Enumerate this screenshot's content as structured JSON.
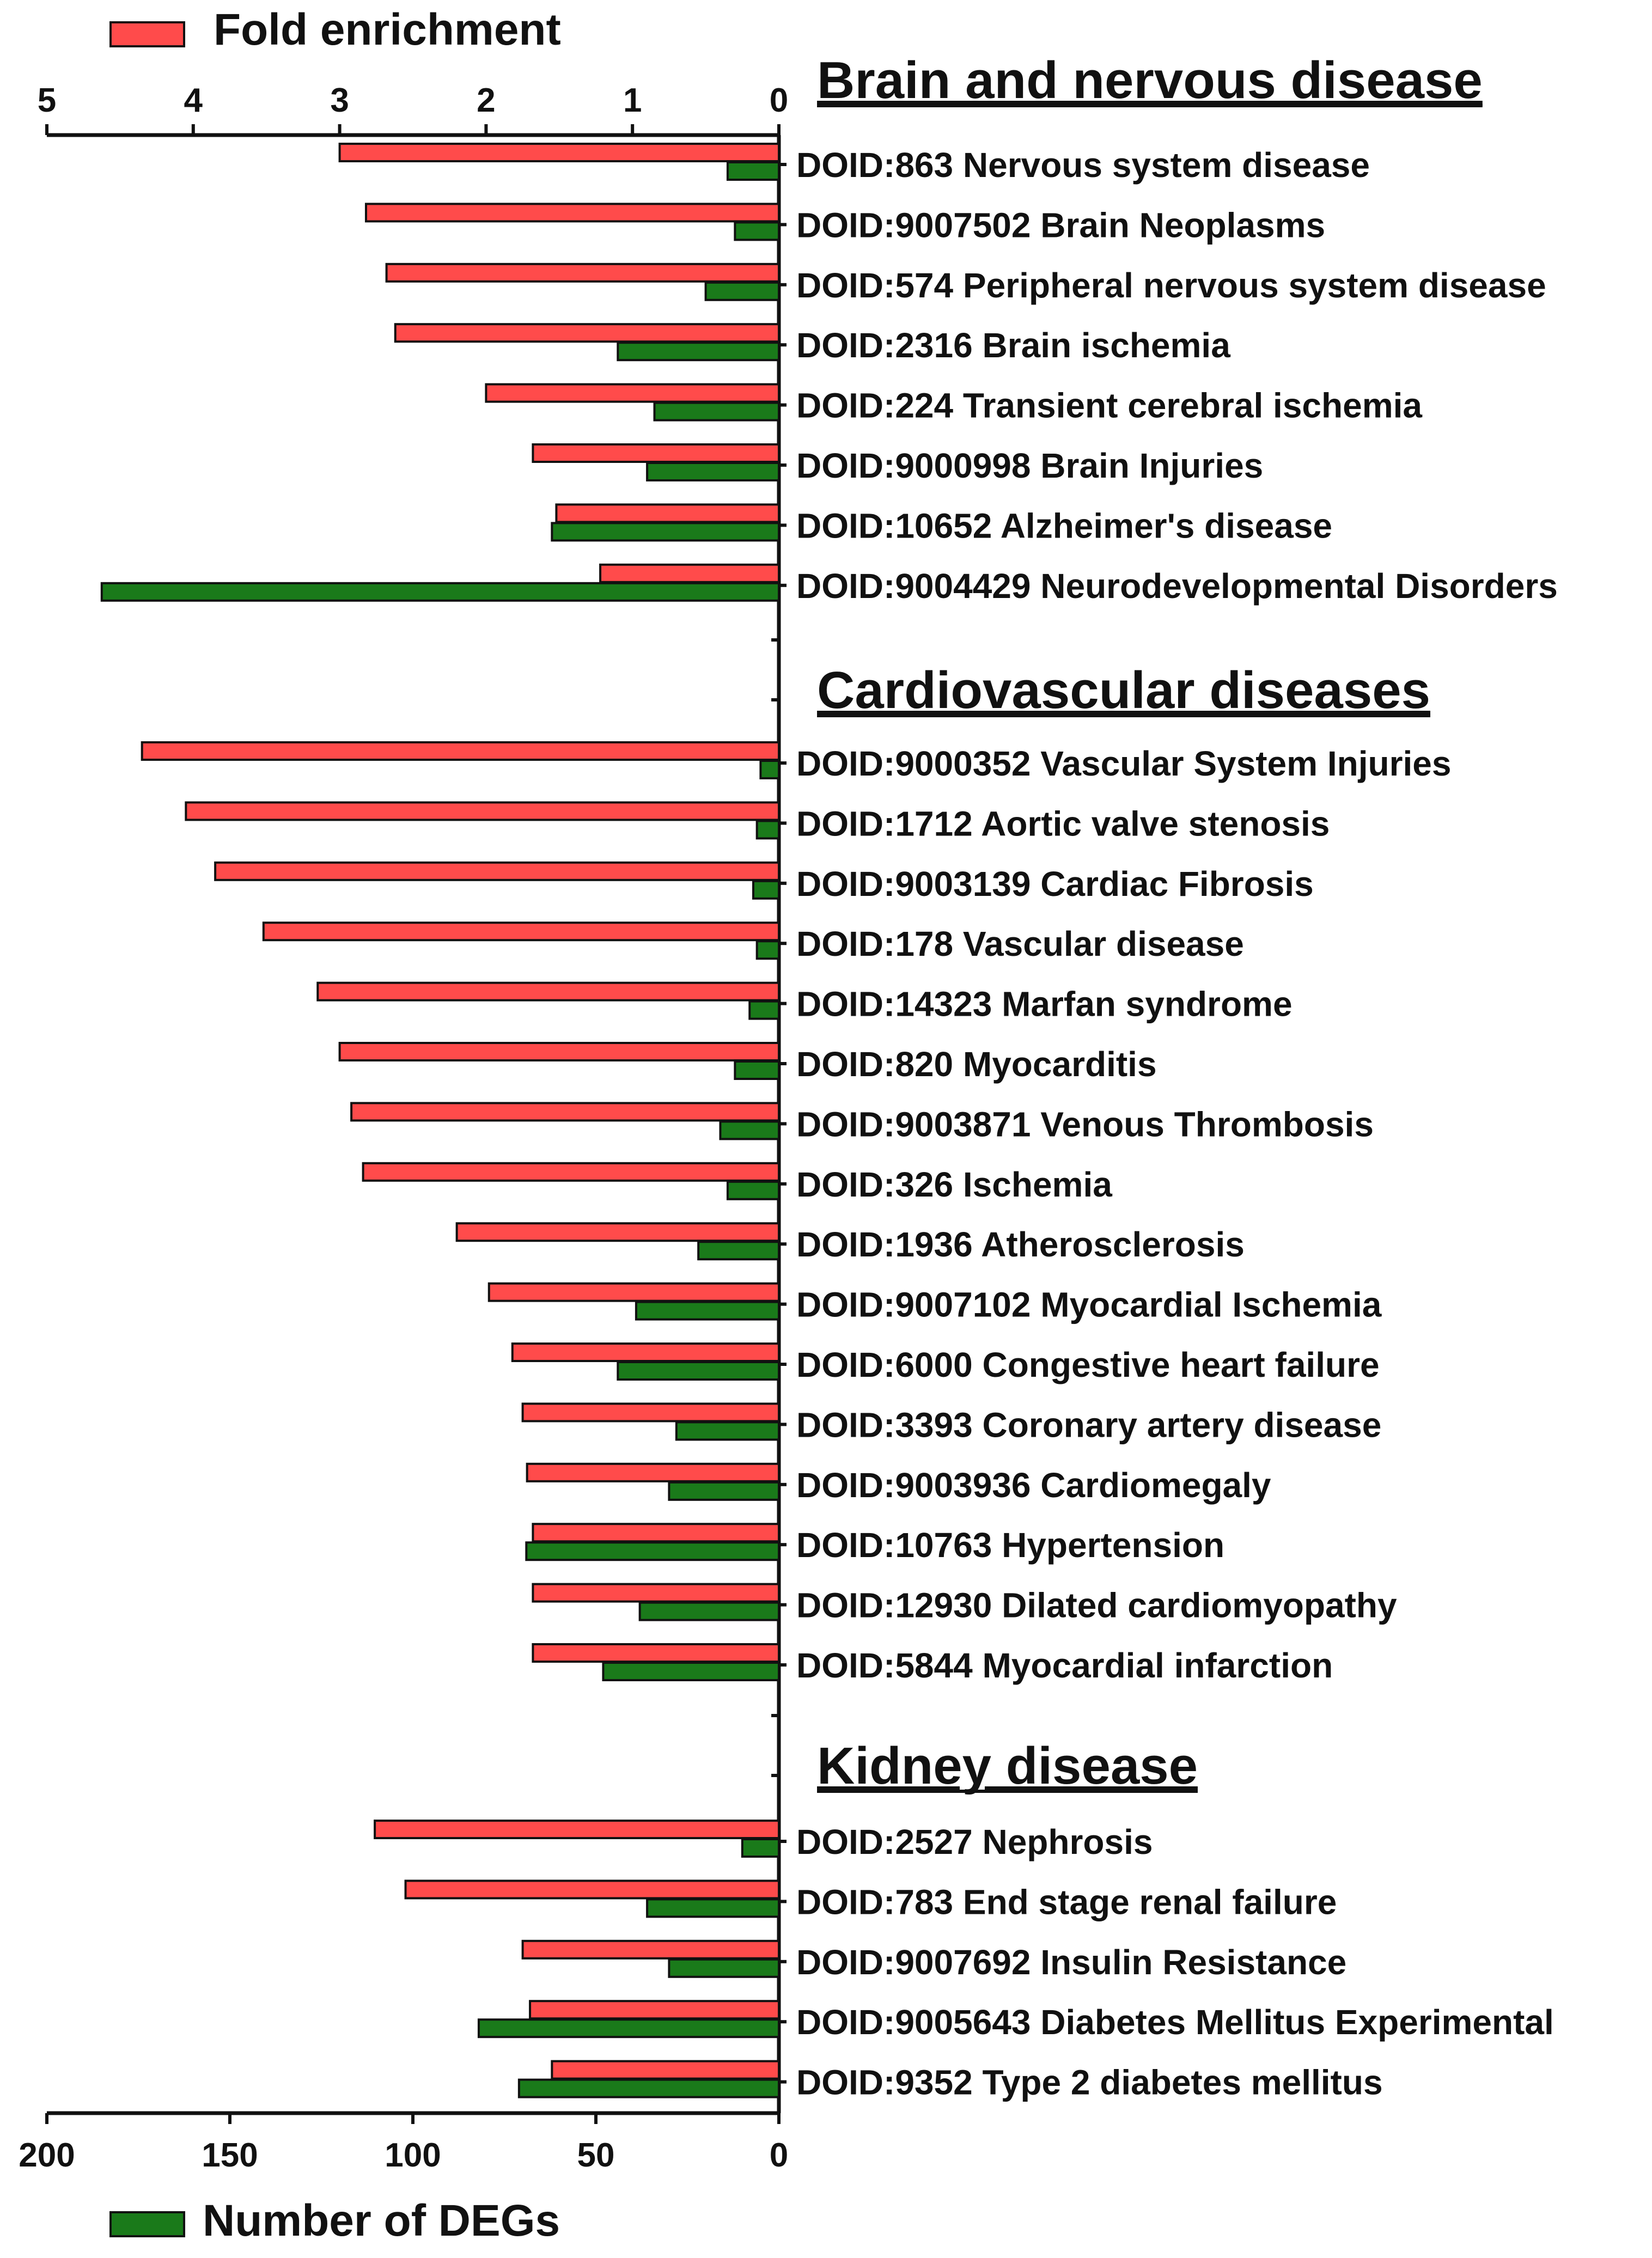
{
  "chart_data": {
    "type": "bar",
    "orientation": "horizontal-mirrored",
    "legend": [
      {
        "name": "Fold enrichment",
        "color": "#ff4b4b",
        "position": "top-left"
      },
      {
        "name": "Number of DEGs",
        "color": "#1a7a1a",
        "position": "bottom-left"
      }
    ],
    "top_axis": {
      "label": "Fold enrichment",
      "range": [
        0,
        5
      ],
      "ticks": [
        "5",
        "4",
        "3",
        "2",
        "1",
        "0"
      ],
      "tick_values": [
        5,
        4,
        3,
        2,
        1,
        0
      ]
    },
    "bottom_axis": {
      "label": "Number of DEGs",
      "range": [
        0,
        200
      ],
      "ticks": [
        "200",
        "150",
        "100",
        "50",
        "0"
      ],
      "tick_values": [
        200,
        150,
        100,
        50,
        0
      ]
    },
    "sections": [
      {
        "title": "Brain and nervous disease",
        "items": [
          {
            "label": "DOID:863 Nervous system disease",
            "fold": 3.0,
            "degs": 14
          },
          {
            "label": "DOID:9007502 Brain Neoplasms",
            "fold": 2.82,
            "degs": 12
          },
          {
            "label": "DOID:574 Peripheral nervous system disease",
            "fold": 2.68,
            "degs": 20
          },
          {
            "label": "DOID:2316 Brain ischemia",
            "fold": 2.62,
            "degs": 44
          },
          {
            "label": "DOID:224 Transient cerebral ischemia",
            "fold": 2.0,
            "degs": 34
          },
          {
            "label": "DOID:9000998 Brain Injuries",
            "fold": 1.68,
            "degs": 36
          },
          {
            "label": "DOID:10652 Alzheimer's disease",
            "fold": 1.52,
            "degs": 62
          },
          {
            "label": "DOID:9004429 Neurodevelopmental Disorders",
            "fold": 1.22,
            "degs": 185
          }
        ]
      },
      {
        "title": "Cardiovascular diseases",
        "items": [
          {
            "label": "DOID:9000352 Vascular System Injuries",
            "fold": 4.35,
            "degs": 5
          },
          {
            "label": "DOID:1712 Aortic valve stenosis",
            "fold": 4.05,
            "degs": 6
          },
          {
            "label": "DOID:9003139 Cardiac Fibrosis",
            "fold": 3.85,
            "degs": 7
          },
          {
            "label": "DOID:178 Vascular disease",
            "fold": 3.52,
            "degs": 6
          },
          {
            "label": "DOID:14323 Marfan syndrome",
            "fold": 3.15,
            "degs": 8
          },
          {
            "label": "DOID:820 Myocarditis",
            "fold": 3.0,
            "degs": 12
          },
          {
            "label": "DOID:9003871 Venous Thrombosis",
            "fold": 2.92,
            "degs": 16
          },
          {
            "label": "DOID:326 Ischemia",
            "fold": 2.84,
            "degs": 14
          },
          {
            "label": "DOID:1936 Atherosclerosis",
            "fold": 2.2,
            "degs": 22
          },
          {
            "label": "DOID:9007102 Myocardial Ischemia",
            "fold": 1.98,
            "degs": 39
          },
          {
            "label": "DOID:6000 Congestive heart failure",
            "fold": 1.82,
            "degs": 44
          },
          {
            "label": "DOID:3393 Coronary artery disease",
            "fold": 1.75,
            "degs": 28
          },
          {
            "label": "DOID:9003936 Cardiomegaly",
            "fold": 1.72,
            "degs": 30
          },
          {
            "label": "DOID:10763 Hypertension",
            "fold": 1.68,
            "degs": 69
          },
          {
            "label": "DOID:12930 Dilated cardiomyopathy",
            "fold": 1.68,
            "degs": 38
          },
          {
            "label": "DOID:5844 Myocardial infarction",
            "fold": 1.68,
            "degs": 48
          }
        ]
      },
      {
        "title": "Kidney disease",
        "items": [
          {
            "label": "DOID:2527 Nephrosis",
            "fold": 2.76,
            "degs": 10
          },
          {
            "label": "DOID:783 End stage renal failure",
            "fold": 2.55,
            "degs": 36
          },
          {
            "label": "DOID:9007692 Insulin Resistance",
            "fold": 1.75,
            "degs": 30
          },
          {
            "label": "DOID:9005643 Diabetes Mellitus Experimental",
            "fold": 1.7,
            "degs": 82
          },
          {
            "label": "DOID:9352 Type 2 diabetes mellitus",
            "fold": 1.55,
            "degs": 71
          }
        ]
      }
    ]
  }
}
